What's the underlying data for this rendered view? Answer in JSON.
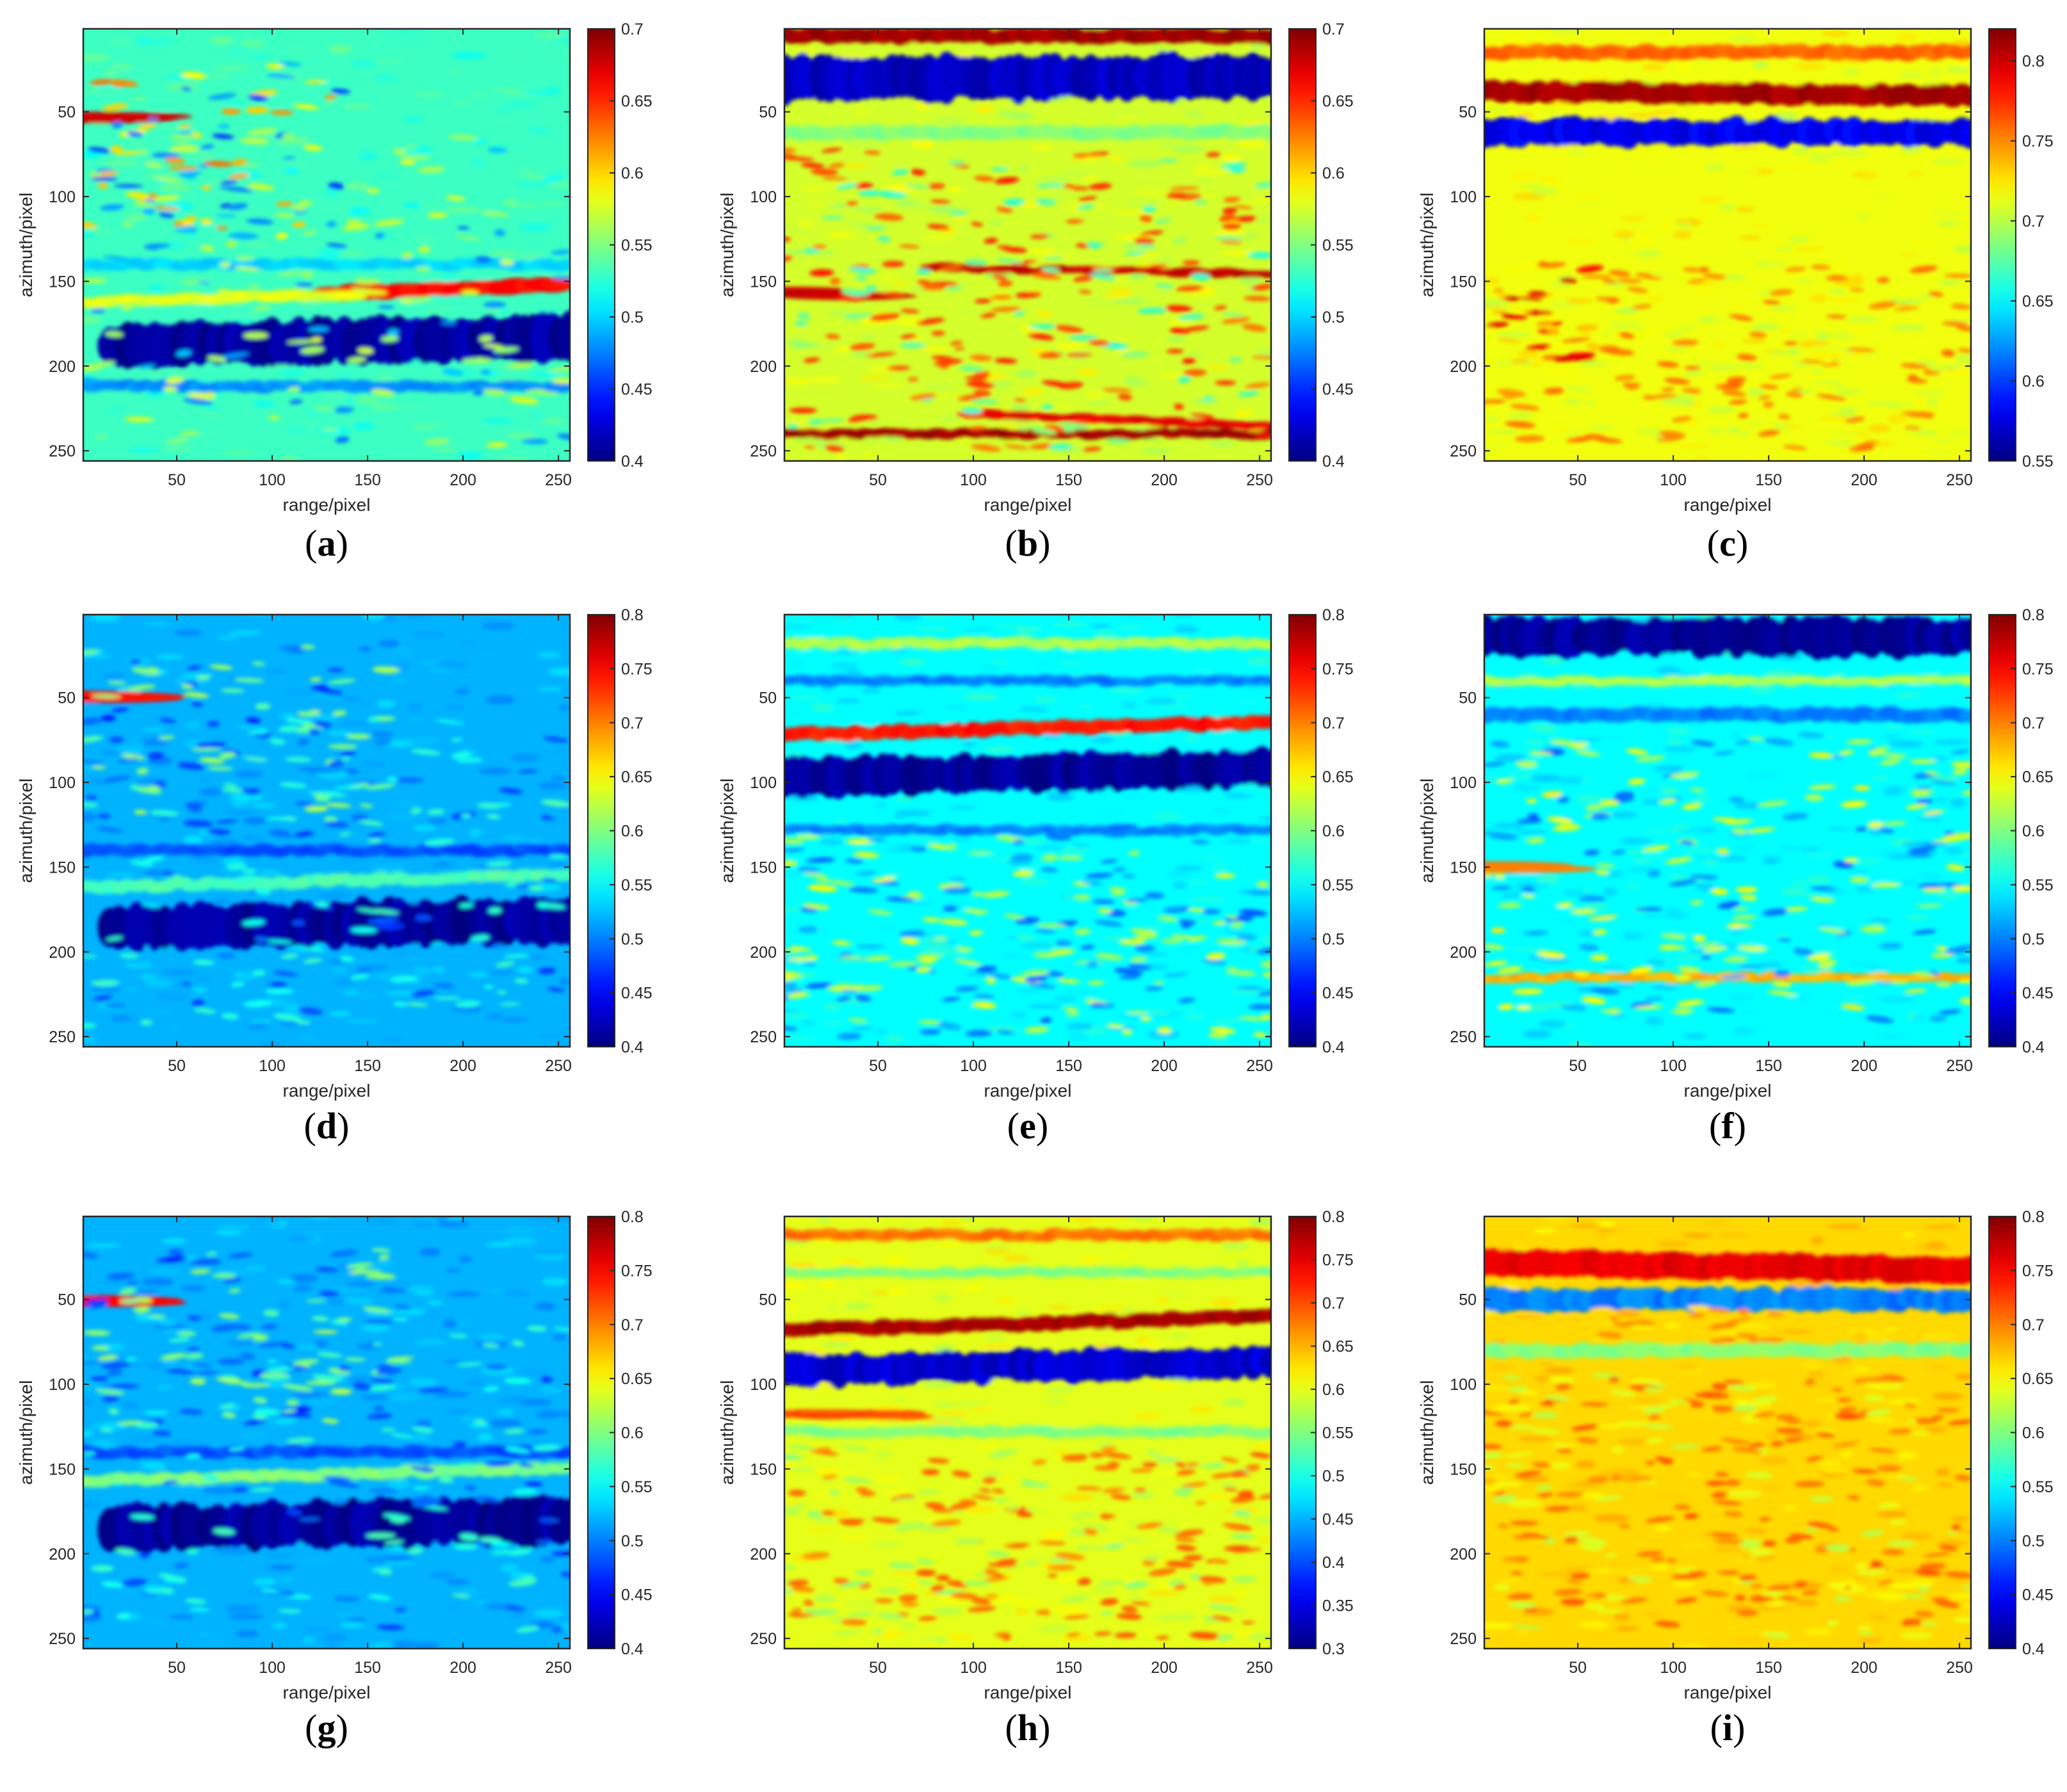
{
  "chart_data": [
    {
      "panel": "a",
      "type": "heatmap",
      "xlabel": "range/pixel",
      "ylabel": "azimuth/pixel",
      "xticks": [
        50,
        100,
        150,
        200,
        250
      ],
      "yticks": [
        50,
        100,
        150,
        200,
        250
      ],
      "xlim": [
        1,
        256
      ],
      "ylim": [
        1,
        256
      ],
      "clim": [
        0.4,
        0.7
      ],
      "colorbar_ticks": [
        "0.4",
        "0.45",
        "0.5",
        "0.55",
        "0.6",
        "0.65",
        "0.7"
      ],
      "background": 0.53,
      "features": [
        {
          "kind": "band",
          "y": 157,
          "thick": 8,
          "val": 0.66,
          "x0": 130,
          "x1": 256,
          "slope": -0.04
        },
        {
          "kind": "band",
          "y": 162,
          "thick": 6,
          "val": 0.58,
          "x0": 1,
          "x1": 140,
          "slope": -0.03
        },
        {
          "kind": "band",
          "y": 188,
          "thick": 24,
          "val": 0.41,
          "x0": 15,
          "x1": 256,
          "slope": -0.02,
          "blobs": true
        },
        {
          "kind": "band",
          "y": 212,
          "thick": 6,
          "val": 0.48,
          "x0": 1,
          "x1": 256,
          "slope": 0
        },
        {
          "kind": "band",
          "y": 140,
          "thick": 6,
          "val": 0.5,
          "x0": 1,
          "x1": 256,
          "slope": 0
        },
        {
          "kind": "band",
          "y": 53,
          "thick": 5,
          "val": 0.68,
          "x0": 1,
          "x1": 18,
          "slope": 0.05
        },
        {
          "kind": "speckle",
          "y0": 20,
          "y1": 130,
          "x0": 1,
          "x1": 140,
          "hi": 0.63,
          "lo": 0.45,
          "n": 70
        },
        {
          "kind": "speckle",
          "y0": 60,
          "y1": 250,
          "x0": 1,
          "x1": 256,
          "hi": 0.58,
          "lo": 0.47,
          "n": 140
        }
      ]
    },
    {
      "panel": "b",
      "type": "heatmap",
      "xlabel": "range/pixel",
      "ylabel": "azimuth/pixel",
      "xticks": [
        50,
        100,
        150,
        200,
        250
      ],
      "yticks": [
        50,
        100,
        150,
        200,
        250
      ],
      "xlim": [
        1,
        256
      ],
      "ylim": [
        1,
        256
      ],
      "clim": [
        0.4,
        0.7
      ],
      "colorbar_ticks": [
        "0.4",
        "0.45",
        "0.5",
        "0.55",
        "0.6",
        "0.65",
        "0.7"
      ],
      "background": 0.575,
      "features": [
        {
          "kind": "band",
          "y": 5,
          "thick": 9,
          "val": 0.69,
          "x0": 1,
          "x1": 256,
          "slope": 0
        },
        {
          "kind": "band",
          "y": 30,
          "thick": 24,
          "val": 0.42,
          "x0": 1,
          "x1": 256,
          "slope": 0,
          "blobs": true
        },
        {
          "kind": "band",
          "y": 62,
          "thick": 8,
          "val": 0.55,
          "x0": 1,
          "x1": 256,
          "slope": 0
        },
        {
          "kind": "band",
          "y": 142,
          "thick": 4,
          "val": 0.68,
          "x0": 80,
          "x1": 256,
          "slope": 0.02
        },
        {
          "kind": "band",
          "y": 155,
          "thick": 4,
          "val": 0.68,
          "x0": 1,
          "x1": 40,
          "slope": 0.1
        },
        {
          "kind": "band",
          "y": 240,
          "thick": 5,
          "val": 0.69,
          "x0": 1,
          "x1": 256,
          "slope": 0
        },
        {
          "kind": "band",
          "y": 228,
          "thick": 4,
          "val": 0.67,
          "x0": 100,
          "x1": 256,
          "slope": 0.05
        },
        {
          "kind": "speckle",
          "y0": 70,
          "y1": 250,
          "x0": 1,
          "x1": 256,
          "hi": 0.66,
          "lo": 0.52,
          "n": 220
        }
      ]
    },
    {
      "panel": "c",
      "type": "heatmap",
      "xlabel": "range/pixel",
      "ylabel": "azimuth/pixel",
      "xticks": [
        50,
        100,
        150,
        200,
        250
      ],
      "yticks": [
        50,
        100,
        150,
        200,
        250
      ],
      "xlim": [
        1,
        256
      ],
      "ylim": [
        1,
        256
      ],
      "clim": [
        0.55,
        0.82
      ],
      "colorbar_ticks": [
        "0.55",
        "0.6",
        "0.65",
        "0.7",
        "0.75",
        "0.8"
      ],
      "background": 0.715,
      "features": [
        {
          "kind": "band",
          "y": 15,
          "thick": 8,
          "val": 0.76,
          "x0": 1,
          "x1": 256,
          "slope": 0
        },
        {
          "kind": "band",
          "y": 38,
          "thick": 12,
          "val": 0.81,
          "x0": 1,
          "x1": 256,
          "slope": 0.01
        },
        {
          "kind": "band",
          "y": 62,
          "thick": 14,
          "val": 0.58,
          "x0": 1,
          "x1": 256,
          "slope": 0,
          "blobs": true
        },
        {
          "kind": "speckle",
          "y0": 140,
          "y1": 250,
          "x0": 1,
          "x1": 256,
          "hi": 0.76,
          "lo": 0.7,
          "n": 160
        },
        {
          "kind": "speckle",
          "y0": 140,
          "y1": 200,
          "x0": 1,
          "x1": 60,
          "hi": 0.8,
          "lo": 0.72,
          "n": 30
        }
      ]
    },
    {
      "panel": "d",
      "type": "heatmap",
      "xlabel": "range/pixel",
      "ylabel": "azimuth/pixel",
      "xticks": [
        50,
        100,
        150,
        200,
        250
      ],
      "yticks": [
        50,
        100,
        150,
        200,
        250
      ],
      "xlim": [
        1,
        256
      ],
      "ylim": [
        1,
        256
      ],
      "clim": [
        0.4,
        0.8
      ],
      "colorbar_ticks": [
        "0.4",
        "0.45",
        "0.5",
        "0.55",
        "0.6",
        "0.65",
        "0.7",
        "0.75",
        "0.8"
      ],
      "background": 0.52,
      "features": [
        {
          "kind": "band",
          "y": 162,
          "thick": 7,
          "val": 0.58,
          "x0": 1,
          "x1": 256,
          "slope": -0.03
        },
        {
          "kind": "band",
          "y": 186,
          "thick": 24,
          "val": 0.41,
          "x0": 15,
          "x1": 256,
          "slope": -0.02,
          "blobs": true
        },
        {
          "kind": "band",
          "y": 140,
          "thick": 6,
          "val": 0.48,
          "x0": 1,
          "x1": 256,
          "slope": 0
        },
        {
          "kind": "band",
          "y": 49,
          "thick": 5,
          "val": 0.75,
          "x0": 1,
          "x1": 15,
          "slope": 0.05
        },
        {
          "kind": "speckle",
          "y0": 20,
          "y1": 130,
          "x0": 1,
          "x1": 160,
          "hi": 0.62,
          "lo": 0.46,
          "n": 80
        },
        {
          "kind": "speckle",
          "y0": 60,
          "y1": 250,
          "x0": 1,
          "x1": 256,
          "hi": 0.58,
          "lo": 0.47,
          "n": 140
        }
      ]
    },
    {
      "panel": "e",
      "type": "heatmap",
      "xlabel": "range/pixel",
      "ylabel": "azimuth/pixel",
      "xticks": [
        50,
        100,
        150,
        200,
        250
      ],
      "yticks": [
        50,
        100,
        150,
        200,
        250
      ],
      "xlim": [
        1,
        256
      ],
      "ylim": [
        1,
        256
      ],
      "clim": [
        0.4,
        0.8
      ],
      "colorbar_ticks": [
        "0.4",
        "0.45",
        "0.5",
        "0.55",
        "0.6",
        "0.65",
        "0.7",
        "0.75",
        "0.8"
      ],
      "background": 0.55,
      "features": [
        {
          "kind": "band",
          "y": 18,
          "thick": 6,
          "val": 0.62,
          "x0": 1,
          "x1": 256,
          "slope": 0
        },
        {
          "kind": "band",
          "y": 40,
          "thick": 5,
          "val": 0.5,
          "x0": 1,
          "x1": 256,
          "slope": 0
        },
        {
          "kind": "band",
          "y": 72,
          "thick": 8,
          "val": 0.74,
          "x0": 1,
          "x1": 256,
          "slope": -0.03
        },
        {
          "kind": "band",
          "y": 97,
          "thick": 20,
          "val": 0.41,
          "x0": 1,
          "x1": 256,
          "slope": -0.02,
          "blobs": true
        },
        {
          "kind": "band",
          "y": 128,
          "thick": 5,
          "val": 0.5,
          "x0": 1,
          "x1": 256,
          "slope": 0
        },
        {
          "kind": "speckle",
          "y0": 130,
          "y1": 250,
          "x0": 1,
          "x1": 256,
          "hi": 0.65,
          "lo": 0.48,
          "n": 200
        }
      ]
    },
    {
      "panel": "f",
      "type": "heatmap",
      "xlabel": "range/pixel",
      "ylabel": "azimuth/pixel",
      "xticks": [
        50,
        100,
        150,
        200,
        250
      ],
      "yticks": [
        50,
        100,
        150,
        200,
        250
      ],
      "xlim": [
        1,
        256
      ],
      "ylim": [
        1,
        256
      ],
      "clim": [
        0.4,
        0.8
      ],
      "colorbar_ticks": [
        "0.4",
        "0.45",
        "0.5",
        "0.55",
        "0.6",
        "0.65",
        "0.7",
        "0.75",
        "0.8"
      ],
      "background": 0.55,
      "features": [
        {
          "kind": "band",
          "y": 14,
          "thick": 20,
          "val": 0.41,
          "x0": 1,
          "x1": 256,
          "slope": 0,
          "blobs": true
        },
        {
          "kind": "band",
          "y": 40,
          "thick": 5,
          "val": 0.62,
          "x0": 1,
          "x1": 256,
          "slope": 0
        },
        {
          "kind": "band",
          "y": 60,
          "thick": 8,
          "val": 0.5,
          "x0": 1,
          "x1": 256,
          "slope": 0
        },
        {
          "kind": "band",
          "y": 215,
          "thick": 5,
          "val": 0.68,
          "x0": 1,
          "x1": 256,
          "slope": 0
        },
        {
          "kind": "band",
          "y": 150,
          "thick": 5,
          "val": 0.7,
          "x0": 1,
          "x1": 20,
          "slope": 0
        },
        {
          "kind": "speckle",
          "y0": 70,
          "y1": 240,
          "x0": 1,
          "x1": 256,
          "hi": 0.66,
          "lo": 0.48,
          "n": 200
        }
      ]
    },
    {
      "panel": "g",
      "type": "heatmap",
      "xlabel": "range/pixel",
      "ylabel": "azimuth/pixel",
      "xticks": [
        50,
        100,
        150,
        200,
        250
      ],
      "yticks": [
        50,
        100,
        150,
        200,
        250
      ],
      "xlim": [
        1,
        256
      ],
      "ylim": [
        1,
        256
      ],
      "clim": [
        0.4,
        0.8
      ],
      "colorbar_ticks": [
        "0.4",
        "0.45",
        "0.5",
        "0.55",
        "0.6",
        "0.65",
        "0.7",
        "0.75",
        "0.8"
      ],
      "background": 0.52,
      "features": [
        {
          "kind": "band",
          "y": 157,
          "thick": 7,
          "val": 0.6,
          "x0": 1,
          "x1": 256,
          "slope": -0.03
        },
        {
          "kind": "band",
          "y": 185,
          "thick": 24,
          "val": 0.41,
          "x0": 15,
          "x1": 256,
          "slope": -0.02,
          "blobs": true
        },
        {
          "kind": "band",
          "y": 140,
          "thick": 6,
          "val": 0.48,
          "x0": 1,
          "x1": 256,
          "slope": 0
        },
        {
          "kind": "band",
          "y": 50,
          "thick": 5,
          "val": 0.75,
          "x0": 1,
          "x1": 15,
          "slope": 0.05
        },
        {
          "kind": "speckle",
          "y0": 20,
          "y1": 130,
          "x0": 1,
          "x1": 170,
          "hi": 0.62,
          "lo": 0.46,
          "n": 90
        },
        {
          "kind": "speckle",
          "y0": 60,
          "y1": 250,
          "x0": 1,
          "x1": 256,
          "hi": 0.58,
          "lo": 0.47,
          "n": 140
        }
      ]
    },
    {
      "panel": "h",
      "type": "heatmap",
      "xlabel": "range/pixel",
      "ylabel": "azimuth/pixel",
      "xticks": [
        50,
        100,
        150,
        200,
        250
      ],
      "yticks": [
        50,
        100,
        150,
        200,
        250
      ],
      "xlim": [
        1,
        256
      ],
      "ylim": [
        1,
        256
      ],
      "clim": [
        0.3,
        0.8
      ],
      "colorbar_ticks": [
        "0.3",
        "0.35",
        "0.4",
        "0.45",
        "0.5",
        "0.55",
        "0.6",
        "0.65",
        "0.7",
        "0.75",
        "0.8"
      ],
      "background": 0.6,
      "features": [
        {
          "kind": "band",
          "y": 12,
          "thick": 6,
          "val": 0.68,
          "x0": 1,
          "x1": 256,
          "slope": 0
        },
        {
          "kind": "band",
          "y": 34,
          "thick": 5,
          "val": 0.55,
          "x0": 1,
          "x1": 256,
          "slope": 0
        },
        {
          "kind": "band",
          "y": 68,
          "thick": 8,
          "val": 0.78,
          "x0": 1,
          "x1": 256,
          "slope": -0.03
        },
        {
          "kind": "band",
          "y": 92,
          "thick": 16,
          "val": 0.34,
          "x0": 1,
          "x1": 256,
          "slope": -0.02,
          "blobs": true
        },
        {
          "kind": "band",
          "y": 118,
          "thick": 4,
          "val": 0.7,
          "x0": 1,
          "x1": 60,
          "slope": 0
        },
        {
          "kind": "band",
          "y": 128,
          "thick": 6,
          "val": 0.55,
          "x0": 1,
          "x1": 256,
          "slope": 0
        },
        {
          "kind": "speckle",
          "y0": 135,
          "y1": 250,
          "x0": 1,
          "x1": 256,
          "hi": 0.7,
          "lo": 0.55,
          "n": 200
        }
      ]
    },
    {
      "panel": "i",
      "type": "heatmap",
      "xlabel": "range/pixel",
      "ylabel": "azimuth/pixel",
      "xticks": [
        50,
        100,
        150,
        200,
        250
      ],
      "yticks": [
        50,
        100,
        150,
        200,
        250
      ],
      "xlim": [
        1,
        256
      ],
      "ylim": [
        1,
        256
      ],
      "clim": [
        0.4,
        0.8
      ],
      "colorbar_ticks": [
        "0.4",
        "0.45",
        "0.5",
        "0.55",
        "0.6",
        "0.65",
        "0.7",
        "0.75",
        "0.8"
      ],
      "background": 0.665,
      "features": [
        {
          "kind": "band",
          "y": 28,
          "thick": 16,
          "val": 0.76,
          "x0": 1,
          "x1": 256,
          "slope": 0.02
        },
        {
          "kind": "band",
          "y": 50,
          "thick": 12,
          "val": 0.5,
          "x0": 1,
          "x1": 256,
          "slope": 0,
          "blobs": true
        },
        {
          "kind": "band",
          "y": 80,
          "thick": 8,
          "val": 0.6,
          "x0": 1,
          "x1": 256,
          "slope": 0
        },
        {
          "kind": "speckle",
          "y0": 95,
          "y1": 250,
          "x0": 1,
          "x1": 256,
          "hi": 0.72,
          "lo": 0.62,
          "n": 220
        },
        {
          "kind": "speckle",
          "y0": 55,
          "y1": 75,
          "x0": 60,
          "x1": 160,
          "hi": 0.7,
          "lo": 0.66,
          "n": 20
        }
      ]
    }
  ],
  "captions": [
    "a",
    "b",
    "c",
    "d",
    "e",
    "f",
    "g",
    "h",
    "i"
  ],
  "colormap": "jet"
}
